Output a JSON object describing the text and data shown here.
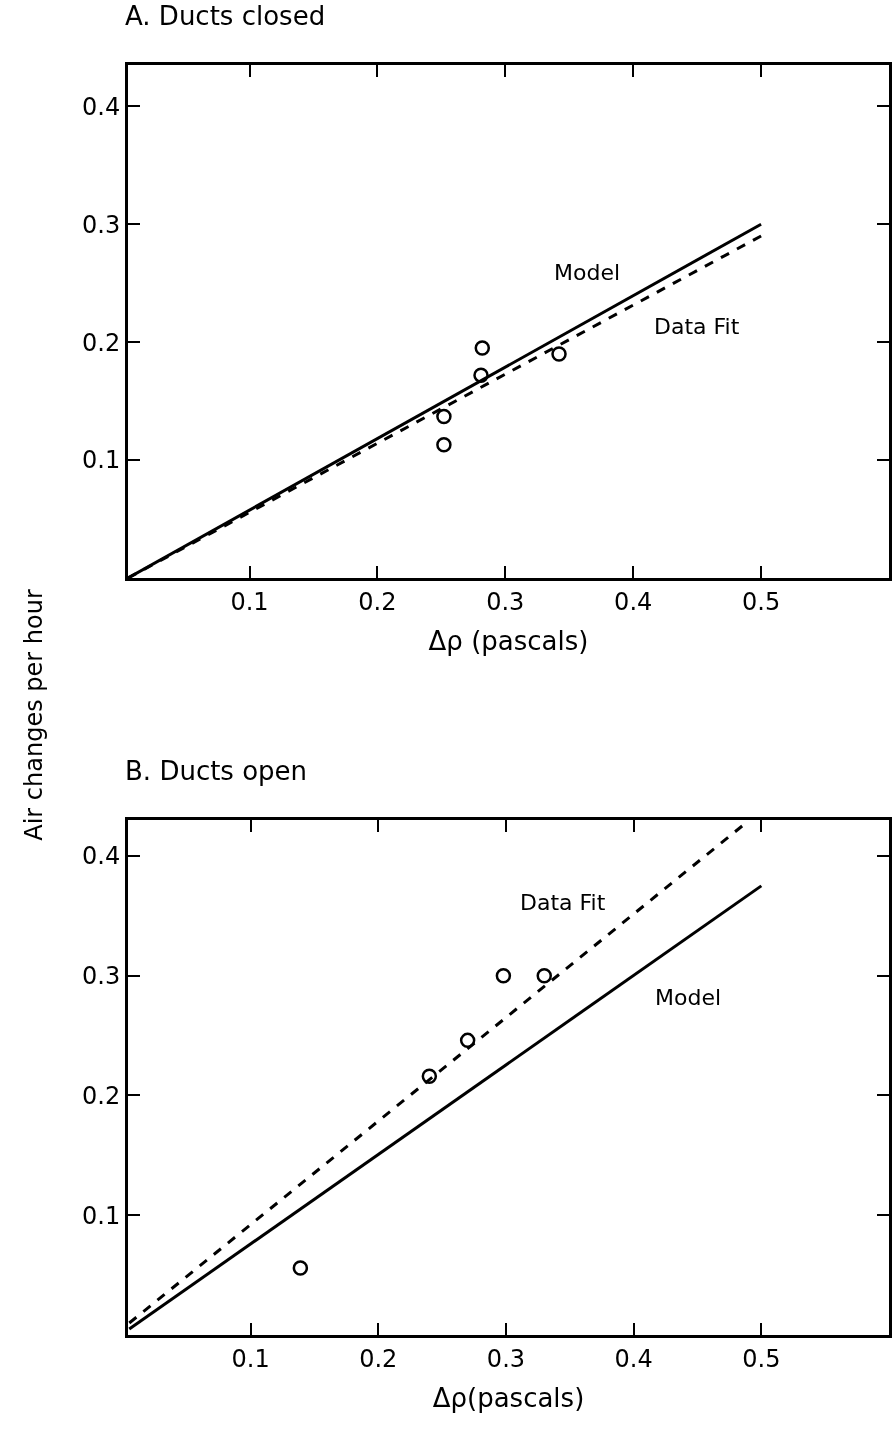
{
  "chart_data": [
    {
      "type": "scatter",
      "title": "A. Ducts closed",
      "xlabel": "Δρ (pascals)",
      "ylabel": "Air changes per hour",
      "xlim": [
        0.005,
        0.6
      ],
      "ylim": [
        0,
        0.435
      ],
      "xticks": [
        0.1,
        0.2,
        0.3,
        0.4,
        0.5
      ],
      "yticks": [
        0.1,
        0.2,
        0.3,
        0.4
      ],
      "grid": false,
      "series": [
        {
          "marker": "circle",
          "color": "#000000",
          "x": [
            0.282,
            0.281,
            0.252,
            0.252,
            0.342
          ],
          "values": [
            0.195,
            0.172,
            0.137,
            0.113,
            0.19
          ]
        },
        {
          "type": "line",
          "name": "Model",
          "color": "#000000",
          "line_style": "solid",
          "x": [
            0.005,
            0.5
          ],
          "values": [
            0,
            0.3
          ]
        },
        {
          "type": "line",
          "name": "Data Fit",
          "color": "#000000",
          "line_style": "dashed",
          "x": [
            0.005,
            0.5
          ],
          "values": [
            0,
            0.29
          ]
        }
      ]
    },
    {
      "type": "scatter",
      "title": "B. Ducts open",
      "xlabel": "Δρ(pascals)",
      "xlim": [
        0.004,
        0.6
      ],
      "ylim": [
        0,
        0.43
      ],
      "xticks": [
        0.1,
        0.2,
        0.3,
        0.4,
        0.5
      ],
      "yticks": [
        0.1,
        0.2,
        0.3,
        0.4
      ],
      "grid": false,
      "series": [
        {
          "marker": "circle",
          "color": "#000000",
          "x": [
            0.139,
            0.24,
            0.27,
            0.298,
            0.33
          ],
          "values": [
            0.056,
            0.216,
            0.246,
            0.3,
            0.3
          ]
        },
        {
          "type": "line",
          "name": "Data Fit",
          "color": "#000000",
          "line_style": "dashed",
          "x": [
            0.005,
            0.485
          ],
          "values": [
            0.01,
            0.425
          ]
        },
        {
          "type": "line",
          "name": "Model",
          "color": "#000000",
          "line_style": "solid",
          "x": [
            0.005,
            0.5
          ],
          "values": [
            0.005,
            0.375
          ]
        }
      ]
    }
  ]
}
